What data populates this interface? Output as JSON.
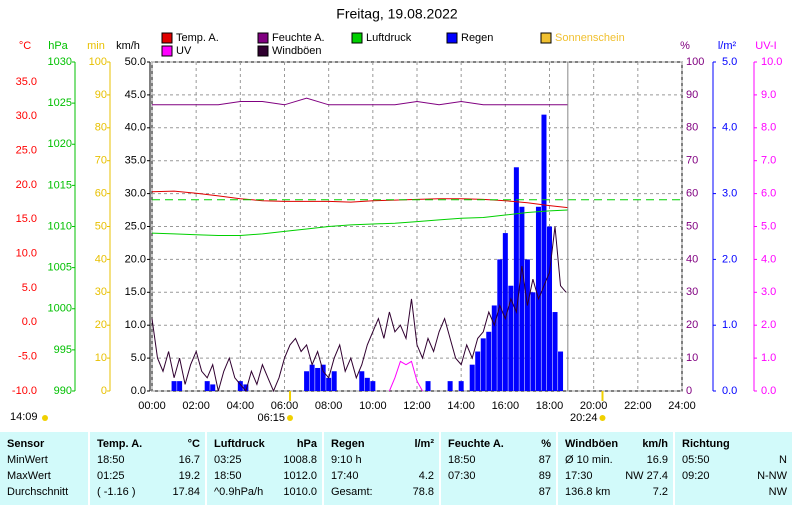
{
  "chart_data": {
    "type": "line",
    "title": "Freitag, 19.08.2022",
    "updated": "14:09",
    "xlim": [
      0,
      24
    ],
    "xticks": [
      {
        "value": 0,
        "label": "00:00"
      },
      {
        "value": 2,
        "label": "02:00"
      },
      {
        "value": 4,
        "label": "04:00"
      },
      {
        "value": 6,
        "label": "06:00"
      },
      {
        "value": 8,
        "label": "08:00"
      },
      {
        "value": 10,
        "label": "10:00"
      },
      {
        "value": 12,
        "label": "12:00"
      },
      {
        "value": 14,
        "label": "14:00"
      },
      {
        "value": 16,
        "label": "16:00"
      },
      {
        "value": 18,
        "label": "18:00"
      },
      {
        "value": 20,
        "label": "20:00"
      },
      {
        "value": 22,
        "label": "22:00"
      },
      {
        "value": 24,
        "label": "24:00"
      }
    ],
    "grid": true,
    "sun_events": [
      {
        "x": 6.25,
        "label": "06:15"
      },
      {
        "x": 20.4,
        "label": "20:24"
      }
    ],
    "axes": [
      {
        "label": "°C",
        "color": "#ff0000",
        "lim": [
          -10,
          37.9
        ],
        "ticks": [
          {
            "value": 35,
            "label": "35.0"
          },
          {
            "value": 30,
            "label": "30.0"
          },
          {
            "value": 25,
            "label": "25.0"
          },
          {
            "value": 20,
            "label": "20.0"
          },
          {
            "value": 15,
            "label": "15.0"
          },
          {
            "value": 10,
            "label": "10.0"
          },
          {
            "value": 5,
            "label": "5.0"
          },
          {
            "value": 0,
            "label": "0.0"
          },
          {
            "value": -5,
            "label": "-5.0"
          },
          {
            "value": -10,
            "label": "-10.0"
          }
        ]
      },
      {
        "label": "hPa",
        "color": "#00c000",
        "lim": [
          990,
          1030
        ],
        "ticks": [
          1030,
          1025,
          1020,
          1015,
          1010,
          1005,
          1000,
          995,
          990
        ]
      },
      {
        "label": "min",
        "color": "#e8c000",
        "lim": [
          0,
          100
        ],
        "ticks": [
          100,
          90,
          80,
          70,
          60,
          50,
          40,
          30,
          20,
          10,
          0
        ]
      },
      {
        "label": "km/h",
        "color": "#000000",
        "lim": [
          0,
          50
        ],
        "grid": true,
        "ticks": [
          {
            "value": 50,
            "label": "50.0"
          },
          {
            "value": 45,
            "label": "45.0"
          },
          {
            "value": 40,
            "label": "40.0"
          },
          {
            "value": 35,
            "label": "35.0"
          },
          {
            "value": 30,
            "label": "30.0"
          },
          {
            "value": 25,
            "label": "25.0"
          },
          {
            "value": 20,
            "label": "20.0"
          },
          {
            "value": 15,
            "label": "15.0"
          },
          {
            "value": 10,
            "label": "10.0"
          },
          {
            "value": 5,
            "label": "5.0"
          },
          {
            "value": 0,
            "label": "0.0"
          }
        ]
      },
      {
        "label": "%",
        "color": "#800080",
        "lim": [
          0,
          100
        ],
        "ticks": [
          100,
          90,
          80,
          70,
          60,
          50,
          40,
          30,
          20,
          10,
          0
        ]
      },
      {
        "label": "l/m²",
        "color": "#0000ff",
        "lim": [
          0,
          5
        ],
        "ticks": [
          {
            "value": 5,
            "label": "5.0"
          },
          {
            "value": 4,
            "label": "4.0"
          },
          {
            "value": 3,
            "label": "3.0"
          },
          {
            "value": 2,
            "label": "2.0"
          },
          {
            "value": 1,
            "label": "1.0"
          },
          {
            "value": 0,
            "label": "0.0"
          }
        ]
      },
      {
        "label": "UV-I",
        "color": "#ff00ff",
        "lim": [
          0,
          10
        ],
        "ticks": [
          {
            "value": 10,
            "label": "10.0"
          },
          {
            "value": 9,
            "label": "9.0"
          },
          {
            "value": 8,
            "label": "8.0"
          },
          {
            "value": 7,
            "label": "7.0"
          },
          {
            "value": 6,
            "label": "6.0"
          },
          {
            "value": 5,
            "label": "5.0"
          },
          {
            "value": 4,
            "label": "4.0"
          },
          {
            "value": 3,
            "label": "3.0"
          },
          {
            "value": 2,
            "label": "2.0"
          },
          {
            "value": 1,
            "label": "1.0"
          },
          {
            "value": 0,
            "label": "0.0"
          }
        ]
      }
    ],
    "series": [
      {
        "name": "Temp. A.",
        "color": "#e00000",
        "axis": 0,
        "style": "line",
        "x": [
          0,
          1,
          2,
          3,
          4,
          5,
          6,
          7,
          8,
          9,
          10,
          11,
          12,
          13,
          14,
          15,
          16,
          17,
          18,
          18.83
        ],
        "values": [
          19.0,
          19.1,
          18.8,
          18.4,
          18.0,
          17.7,
          17.6,
          17.6,
          17.6,
          17.5,
          17.7,
          17.8,
          17.9,
          18.0,
          18.0,
          17.9,
          17.7,
          17.4,
          17.0,
          16.7
        ]
      },
      {
        "name": "UV",
        "color": "#ff00ff",
        "axis": 6,
        "style": "line",
        "x": [
          10.75,
          11.0,
          11.25,
          11.5,
          11.75,
          12.0,
          12.25
        ],
        "values": [
          0,
          0.4,
          0.9,
          0.8,
          0.9,
          0.3,
          0
        ]
      },
      {
        "name": "Feuchte A.",
        "color": "#800080",
        "axis": 4,
        "style": "line",
        "x": [
          0,
          1,
          2,
          3,
          4,
          5,
          6,
          7,
          8,
          9,
          10,
          11,
          12,
          13,
          14,
          15,
          16,
          17,
          18,
          18.83
        ],
        "values": [
          87,
          87,
          87,
          87,
          88,
          88,
          87,
          89,
          87,
          87,
          87,
          87,
          88,
          87,
          88,
          87,
          87,
          87,
          87,
          87
        ]
      },
      {
        "name": "Windböen",
        "color": "#300030",
        "axis": 3,
        "style": "line",
        "x": [
          0,
          0.25,
          0.5,
          0.75,
          1,
          1.25,
          1.5,
          1.75,
          2,
          2.25,
          2.5,
          2.75,
          3,
          3.25,
          3.5,
          3.75,
          4,
          4.25,
          4.5,
          4.75,
          5,
          5.25,
          5.5,
          5.75,
          6,
          6.25,
          6.5,
          6.75,
          7,
          7.25,
          7.5,
          7.75,
          8,
          8.25,
          8.5,
          8.75,
          9,
          9.25,
          9.5,
          9.75,
          10,
          10.25,
          10.5,
          10.75,
          11,
          11.25,
          11.5,
          11.75,
          12,
          12.25,
          12.5,
          12.75,
          13,
          13.25,
          13.5,
          13.75,
          14,
          14.25,
          14.5,
          14.75,
          15,
          15.25,
          15.5,
          15.75,
          16,
          16.25,
          16.5,
          16.75,
          17,
          17.25,
          17.5,
          17.75,
          18,
          18.25,
          18.5,
          18.75
        ],
        "values": [
          11,
          5,
          3,
          6,
          2,
          5,
          1,
          4,
          6,
          3,
          2,
          4,
          0,
          3,
          5,
          2,
          1,
          0,
          3,
          1,
          4,
          2,
          0,
          2,
          5,
          7,
          8,
          6,
          7,
          4,
          6,
          3,
          2,
          5,
          7,
          3,
          5,
          2,
          4,
          7,
          9,
          11,
          8,
          12,
          9,
          10,
          8,
          14,
          7,
          5,
          8,
          6,
          9,
          11,
          8,
          5,
          4,
          7,
          5,
          8,
          9,
          12,
          10,
          13,
          11,
          14,
          12,
          19,
          13,
          17,
          14,
          16,
          18,
          25,
          16,
          15
        ]
      },
      {
        "name": "Luftdruck",
        "color": "#00d000",
        "axis": 1,
        "style": "line",
        "reference": 1013.25,
        "x": [
          0,
          1,
          2,
          3,
          4,
          5,
          6,
          7,
          8,
          9,
          10,
          11,
          12,
          13,
          14,
          15,
          16,
          17,
          18,
          18.83
        ],
        "values": [
          1009.2,
          1009.1,
          1009.0,
          1008.9,
          1008.9,
          1009.1,
          1009.4,
          1009.7,
          1010.0,
          1010.2,
          1010.3,
          1010.4,
          1010.6,
          1010.8,
          1011.0,
          1011.1,
          1011.4,
          1011.7,
          1011.9,
          1012.0
        ]
      },
      {
        "name": "Regen",
        "color": "#0000ff",
        "axis": 5,
        "style": "bar",
        "x": [
          1,
          1.25,
          2.5,
          2.75,
          4,
          4.25,
          7,
          7.25,
          7.5,
          7.75,
          8,
          8.25,
          9.5,
          9.75,
          10,
          12.5,
          13.5,
          14,
          14.5,
          14.75,
          15,
          15.25,
          15.5,
          15.75,
          16,
          16.25,
          16.5,
          16.75,
          17,
          17.25,
          17.5,
          17.75,
          18,
          18.25,
          18.5
        ],
        "values": [
          0.15,
          0.15,
          0.15,
          0.1,
          0.15,
          0.1,
          0.3,
          0.4,
          0.35,
          0.4,
          0.2,
          0.3,
          0.3,
          0.2,
          0.15,
          0.15,
          0.15,
          0.15,
          0.4,
          0.6,
          0.8,
          0.9,
          1.3,
          2.0,
          2.4,
          1.6,
          3.4,
          2.8,
          2.0,
          1.5,
          2.8,
          4.2,
          2.5,
          1.2,
          0.6
        ]
      },
      {
        "name": "Sonnenschein",
        "color": "#f0c030",
        "axis": 2,
        "style": "bar",
        "legend_text_color": "#f0c030",
        "x": [],
        "values": []
      }
    ]
  },
  "table": {
    "columns": [
      {
        "header": [
          "Sensor"
        ],
        "rows": [
          [
            "MinWert"
          ],
          [
            "MaxWert"
          ],
          [
            "Durchschnitt"
          ]
        ]
      },
      {
        "header": [
          "Temp. A.",
          "°C"
        ],
        "rows": [
          [
            "18:50",
            "16.7"
          ],
          [
            "01:25",
            "19.2"
          ],
          [
            "( -1.16 )",
            "17.84"
          ]
        ]
      },
      {
        "header": [
          "Luftdruck",
          "hPa"
        ],
        "rows": [
          [
            "03:25",
            "1008.8"
          ],
          [
            "18:50",
            "1012.0"
          ],
          [
            "^0.9hPa/h",
            "1010.0"
          ]
        ]
      },
      {
        "header": [
          "Regen",
          "l/m²"
        ],
        "rows": [
          [
            "9:10 h",
            null
          ],
          [
            "17:40",
            "4.2"
          ],
          [
            "Gesamt:",
            "78.8"
          ]
        ]
      },
      {
        "header": [
          "Feuchte A.",
          "%"
        ],
        "rows": [
          [
            "18:50",
            "87"
          ],
          [
            "07:30",
            "89"
          ],
          [
            null,
            "87"
          ]
        ]
      },
      {
        "header": [
          "Windböen",
          "km/h"
        ],
        "rows": [
          [
            "Ø 10 min.",
            "16.9"
          ],
          [
            "17:30",
            "NW 27.4"
          ],
          [
            "136.8 km",
            "7.2"
          ]
        ]
      },
      {
        "header": [
          "Richtung",
          null
        ],
        "rows": [
          [
            "05:50",
            "N"
          ],
          [
            "09:20",
            "N-NW"
          ],
          [
            null,
            "NW"
          ]
        ]
      }
    ]
  }
}
